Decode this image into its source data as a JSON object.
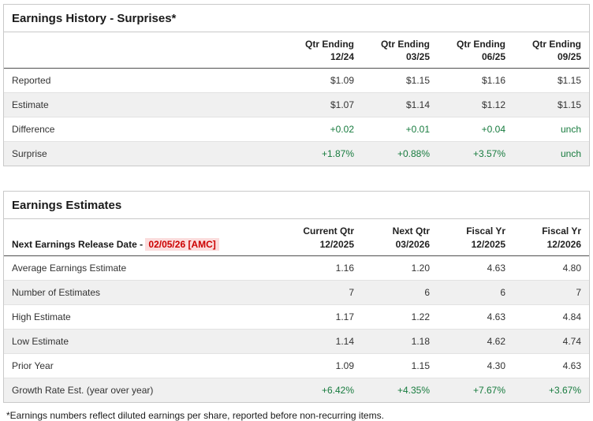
{
  "colors": {
    "positive": "#177b3e",
    "highlight_text": "#cc0000",
    "highlight_bg": "#fbdcdc"
  },
  "surprises": {
    "title": "Earnings History - Surprises*",
    "columns": [
      {
        "line1": "Qtr Ending",
        "line2": "12/24"
      },
      {
        "line1": "Qtr Ending",
        "line2": "03/25"
      },
      {
        "line1": "Qtr Ending",
        "line2": "06/25"
      },
      {
        "line1": "Qtr Ending",
        "line2": "09/25"
      }
    ],
    "rows": [
      {
        "label": "Reported",
        "values": [
          "$1.09",
          "$1.15",
          "$1.16",
          "$1.15"
        ]
      },
      {
        "label": "Estimate",
        "values": [
          "$1.07",
          "$1.14",
          "$1.12",
          "$1.15"
        ]
      },
      {
        "label": "Difference",
        "values": [
          "+0.02",
          "+0.01",
          "+0.04",
          "unch"
        ]
      },
      {
        "label": "Surprise",
        "values": [
          "+1.87%",
          "+0.88%",
          "+3.57%",
          "unch"
        ]
      }
    ]
  },
  "estimates": {
    "title": "Earnings Estimates",
    "release_label": "Next Earnings Release Date - ",
    "release_date": "02/05/26 [AMC]",
    "columns": [
      {
        "line1": "Current Qtr",
        "line2": "12/2025"
      },
      {
        "line1": "Next Qtr",
        "line2": "03/2026"
      },
      {
        "line1": "Fiscal Yr",
        "line2": "12/2025"
      },
      {
        "line1": "Fiscal Yr",
        "line2": "12/2026"
      }
    ],
    "rows": [
      {
        "label": "Average Earnings Estimate",
        "values": [
          "1.16",
          "1.20",
          "4.63",
          "4.80"
        ]
      },
      {
        "label": "Number of Estimates",
        "values": [
          "7",
          "6",
          "6",
          "7"
        ]
      },
      {
        "label": "High Estimate",
        "values": [
          "1.17",
          "1.22",
          "4.63",
          "4.84"
        ]
      },
      {
        "label": "Low Estimate",
        "values": [
          "1.14",
          "1.18",
          "4.62",
          "4.74"
        ]
      },
      {
        "label": "Prior Year",
        "values": [
          "1.09",
          "1.15",
          "4.30",
          "4.63"
        ]
      },
      {
        "label": "Growth Rate Est. (year over year)",
        "values": [
          "+6.42%",
          "+4.35%",
          "+7.67%",
          "+3.67%"
        ]
      }
    ]
  },
  "footnote": "*Earnings numbers reflect diluted earnings per share, reported before non-recurring items."
}
